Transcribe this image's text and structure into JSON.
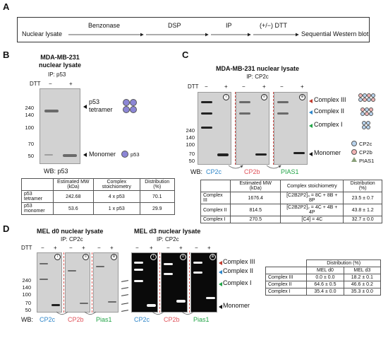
{
  "panel_A": {
    "letter": "A",
    "steps": [
      "Nuclear lysate",
      "Benzonase",
      "DSP",
      "IP",
      "(+/−) DTT",
      "Sequential Western blot"
    ]
  },
  "panel_B": {
    "letter": "B",
    "title_line1": "MDA-MB-231",
    "title_line2": "nuclear lysate",
    "ip": "IP: p53",
    "dtt": "DTT",
    "lane_minus": "−",
    "lane_plus": "+",
    "markers": [
      "240",
      "140",
      "100",
      "70",
      "50"
    ],
    "label_tetramer_1": "p53",
    "label_tetramer_2": "tetramer",
    "label_monomer": "Monomer",
    "legend_p53": "p53",
    "wb": "WB: p53",
    "table": {
      "headers": [
        "",
        "Estimated MW (kDa)",
        "Complex stoichiometry",
        "Distribution (%)"
      ],
      "rows": [
        [
          "p53 tetramer",
          "242.68",
          "4 x p53",
          "70.1"
        ],
        [
          "p53 monomer",
          "53.6",
          "1 x p53",
          "29.9"
        ]
      ]
    }
  },
  "panel_C": {
    "letter": "C",
    "title": "MDA-MB-231 nuclear lysate",
    "ip": "IP: CP2c",
    "dtt": "DTT",
    "lane_minus": "−",
    "lane_plus": "+",
    "markers": [
      "240",
      "140",
      "100",
      "70",
      "50"
    ],
    "blot_numbers": [
      "i",
      "ii",
      "iii"
    ],
    "complex_labels": [
      "Complex III",
      "Complex II",
      "Complex I",
      "Monomer"
    ],
    "wb_label": "WB:",
    "wb_targets": [
      "CP2c",
      "CP2b",
      "PIAS1"
    ],
    "legend": [
      "CP2c",
      "CP2b",
      "PIAS1"
    ],
    "colors": {
      "cp2c": "#2e86c9",
      "cp2b": "#e0525a",
      "pias1": "#22a447"
    },
    "table": {
      "headers": [
        "",
        "Estimated MW (kDa)",
        "Complex stoichiometry",
        "Distribution (%)"
      ],
      "rows": [
        [
          "Complex III",
          "1676.4",
          "[C2B2P2]₄ = 8C + 8B + 8P",
          "23.5 ± 0.7"
        ],
        [
          "Complex II",
          "814.5",
          "[C2B2P2]₂ = 4C + 4B + 4P",
          "43.8 ± 1.2"
        ],
        [
          "Complex I",
          "270.5",
          "[C4] = 4C",
          "32.7 ± 0.0"
        ]
      ]
    }
  },
  "panel_D": {
    "letter": "D",
    "title_d0": "MEL d0 nuclear lysate",
    "title_d3": "MEL d3 nuclear lysate",
    "ip": "IP: CP2c",
    "dtt": "DTT",
    "lane_minus": "−",
    "lane_plus": "+",
    "markers": [
      "240",
      "140",
      "100",
      "70",
      "50"
    ],
    "blot_numbers": [
      "i",
      "ii",
      "iii"
    ],
    "complex_labels": [
      "Complex III",
      "Complex II",
      "Complex I",
      "Monomer"
    ],
    "wb_label": "WB:",
    "wb_targets": [
      "CP2c",
      "CP2b",
      "Pias1"
    ],
    "table": {
      "header_top": "Distribution (%)",
      "headers": [
        "",
        "MEL d0",
        "MEL d3"
      ],
      "rows": [
        [
          "Complex III",
          "0.0 ± 0.0",
          "18.2 ± 0.1"
        ],
        [
          "Complex II",
          "64.6 ± 0.5",
          "46.6 ± 0.2"
        ],
        [
          "Complex I",
          "35.4 ± 0.0",
          "35.3 ± 0.0"
        ]
      ]
    }
  }
}
